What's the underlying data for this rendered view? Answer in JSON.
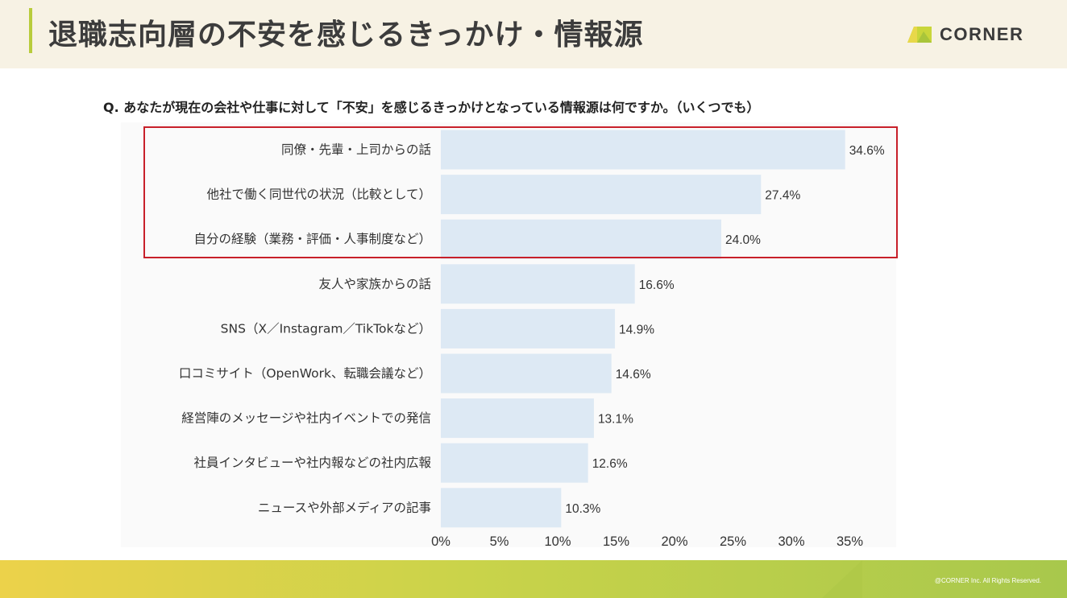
{
  "header": {
    "title": "退職志向層の不安を感じるきっかけ・情報源",
    "logo_text": "CORNER"
  },
  "question": "Q. あなたが現在の会社や仕事に対して「不安」を感じるきっかけとなっている情報源は何ですか。（いくつでも）",
  "chart_data": {
    "type": "bar",
    "orientation": "horizontal",
    "categories": [
      "同僚・先輩・上司からの話",
      "他社で働く同世代の状況（比較として）",
      "自分の経験（業務・評価・人事制度など）",
      "友人や家族からの話",
      "SNS（X／Instagram／TikTokなど）",
      "口コミサイト（OpenWork、転職会議など）",
      "経営陣のメッセージや社内イベントでの発信",
      "社員インタビューや社内報などの社内広報",
      "ニュースや外部メディアの記事"
    ],
    "values": [
      34.6,
      27.4,
      24.0,
      16.6,
      14.9,
      14.6,
      13.1,
      12.6,
      10.3
    ],
    "value_labels": [
      "34.6%",
      "27.4%",
      "24.0%",
      "16.6%",
      "14.9%",
      "14.6%",
      "13.1%",
      "12.6%",
      "10.3%"
    ],
    "xlim": [
      0,
      35
    ],
    "xticks": [
      0,
      5,
      10,
      15,
      20,
      25,
      30,
      35
    ],
    "xtick_labels": [
      "0%",
      "5%",
      "10%",
      "15%",
      "20%",
      "25%",
      "30%",
      "35%"
    ],
    "highlighted_categories": [
      0,
      1,
      2
    ],
    "bar_color": "#dde9f4",
    "highlight_border_color": "#c8202a",
    "grid": false,
    "legend": "none"
  },
  "footer": {
    "copyright": "@CORNER Inc. All Rights Reserved."
  },
  "colors": {
    "header_bg": "#f7f2e4",
    "accent": "#b8cc3c",
    "footer_yellow": "#ecd24a",
    "footer_green": "#a8c84c"
  }
}
